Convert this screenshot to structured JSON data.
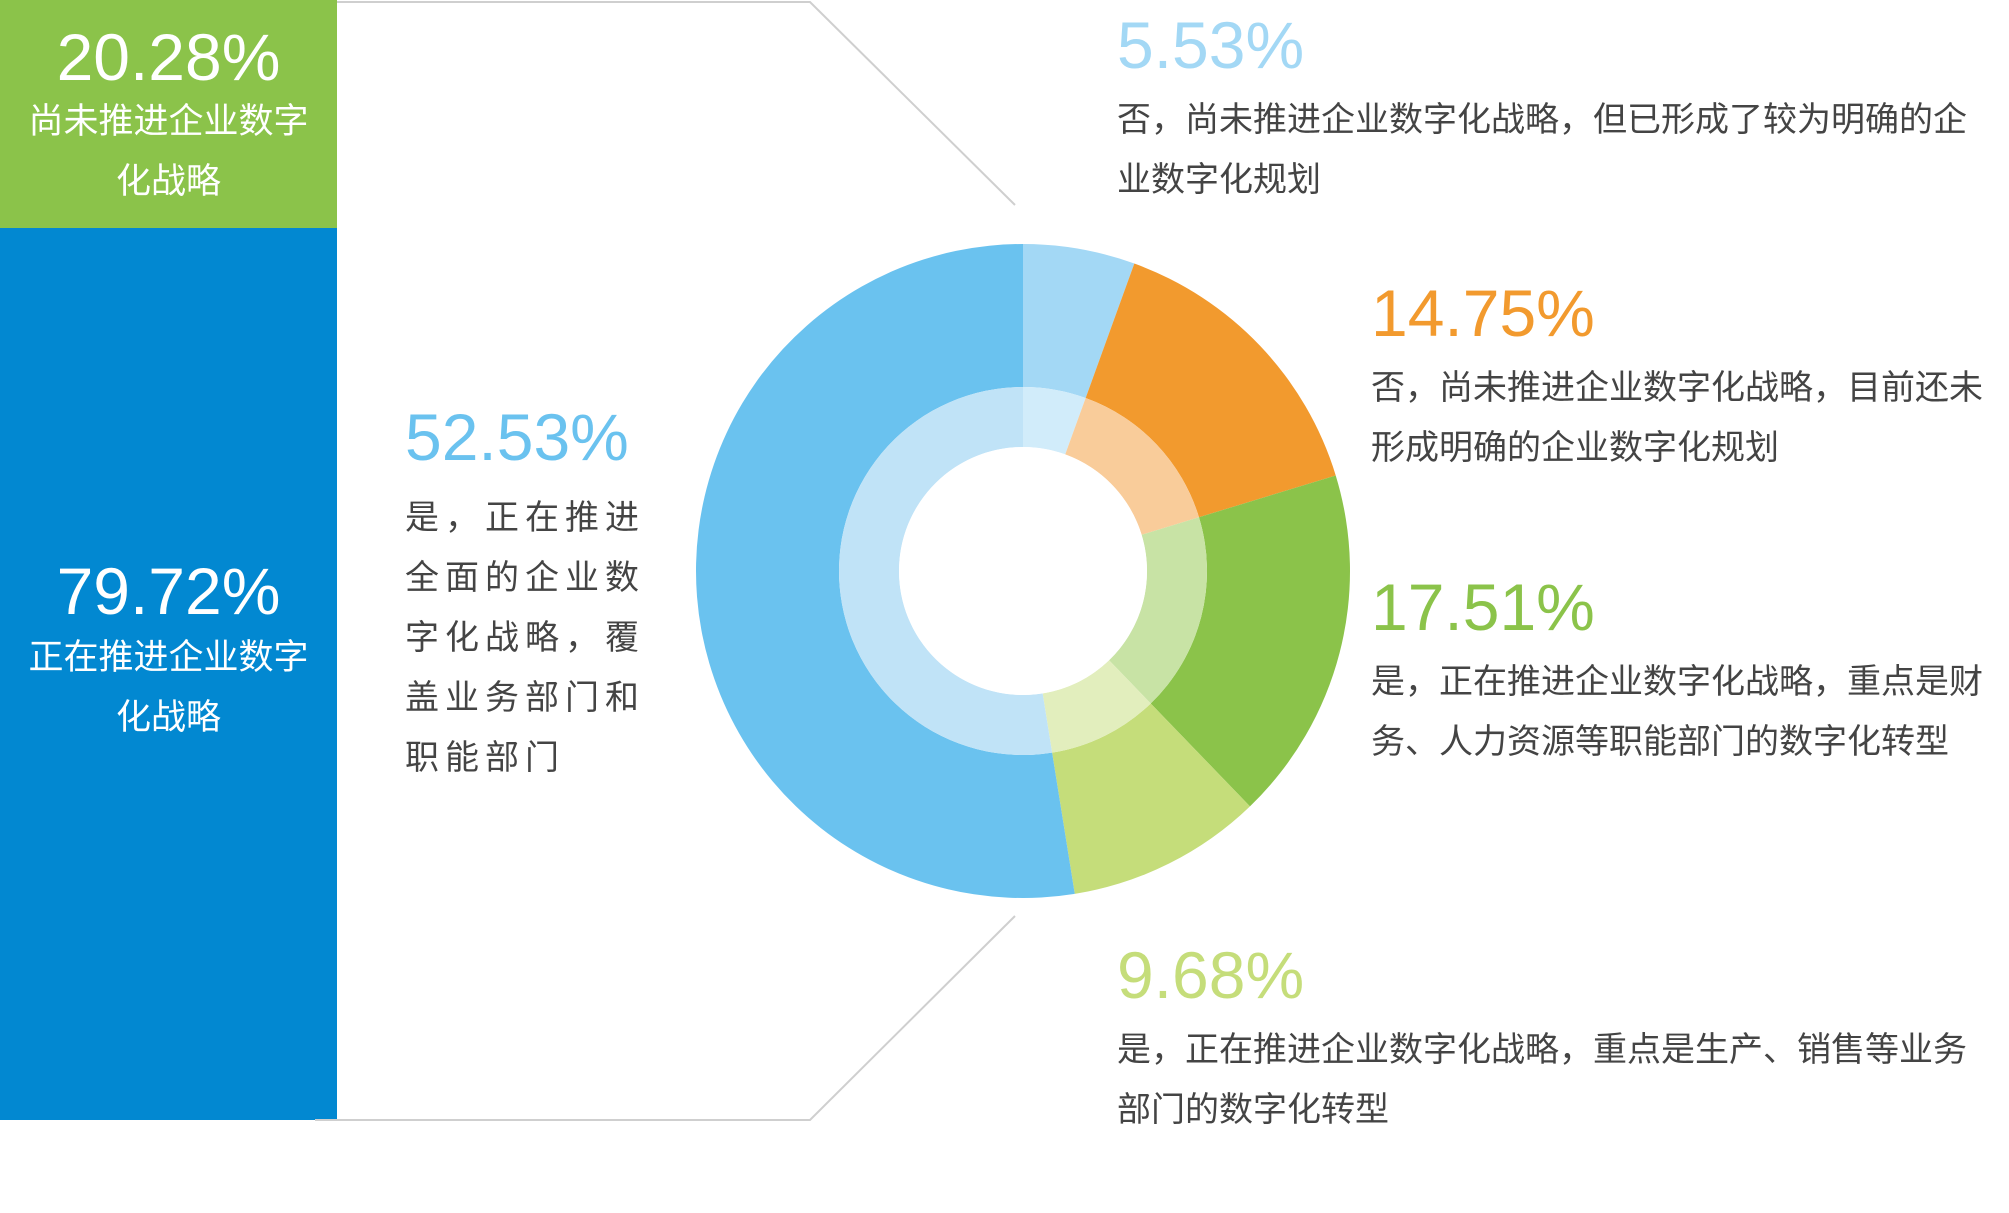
{
  "summary": {
    "not_started": {
      "pct": "20.28%",
      "label": "尚未推进企业数字化战略",
      "color": "#8bc34a"
    },
    "started": {
      "pct": "79.72%",
      "label": "正在推进企业数字化战略",
      "color": "#0288d1"
    }
  },
  "chart_data": {
    "type": "pie",
    "style": "donut",
    "slices": [
      {
        "pct": "5.53%",
        "value": 5.53,
        "label": "否，尚未推进企业数字化战略，但已形成了较为明确的企业数字化规划",
        "color": "#a3d8f5",
        "inner_color": "#d1ecfa"
      },
      {
        "pct": "14.75%",
        "value": 14.75,
        "label": "否，尚未推进企业数字化战略，目前还未形成明确的企业数字化规划",
        "color": "#f29a2e",
        "inner_color": "#f9cc9a"
      },
      {
        "pct": "17.51%",
        "value": 17.51,
        "label": "是，正在推进企业数字化战略，重点是财务、人力资源等职能部门的数字化转型",
        "color": "#8bc34a",
        "inner_color": "#c8e3a5"
      },
      {
        "pct": "9.68%",
        "value": 9.68,
        "label": "是，正在推进企业数字化战略，重点是生产、销售等业务部门的数字化转型",
        "color": "#c5dd7a",
        "inner_color": "#e2eebd"
      },
      {
        "pct": "52.53%",
        "value": 52.53,
        "label": "是，正在推进全面的企业数字化战略，覆盖业务部门和职能部门",
        "color": "#6ac2ef",
        "inner_color": "#c0e3f7"
      }
    ]
  }
}
